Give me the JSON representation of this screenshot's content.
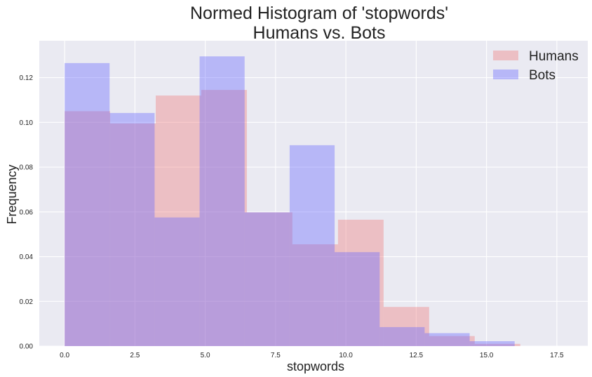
{
  "chart_data": {
    "type": "histogram",
    "title": "Normed Histogram of 'stopwords'",
    "subtitle": "Humans vs. Bots",
    "xlabel": "stopwords",
    "ylabel": "Frequency",
    "xlim": [
      -0.9,
      18.6
    ],
    "ylim": [
      0,
      0.1365
    ],
    "xticks": [
      0.0,
      2.5,
      5.0,
      7.5,
      10.0,
      12.5,
      15.0,
      17.5
    ],
    "xtick_labels": [
      "0.0",
      "2.5",
      "5.0",
      "7.5",
      "10.0",
      "12.5",
      "15.0",
      "17.5"
    ],
    "yticks": [
      0.0,
      0.02,
      0.04,
      0.06,
      0.08,
      0.1,
      0.12
    ],
    "ytick_labels": [
      "0.00",
      "0.02",
      "0.04",
      "0.06",
      "0.08",
      "0.10",
      "0.12"
    ],
    "grid": true,
    "legend_position": "top-right",
    "series": [
      {
        "name": "Humans",
        "color": "#f08080",
        "bins": [
          {
            "x0": 0.0,
            "x1": 1.62,
            "y": 0.105
          },
          {
            "x0": 1.62,
            "x1": 3.24,
            "y": 0.0995
          },
          {
            "x0": 3.24,
            "x1": 4.86,
            "y": 0.112
          },
          {
            "x0": 4.86,
            "x1": 6.48,
            "y": 0.1145
          },
          {
            "x0": 6.48,
            "x1": 8.1,
            "y": 0.0598
          },
          {
            "x0": 8.1,
            "x1": 9.72,
            "y": 0.0455
          },
          {
            "x0": 9.72,
            "x1": 11.34,
            "y": 0.0565
          },
          {
            "x0": 11.34,
            "x1": 12.96,
            "y": 0.0175
          },
          {
            "x0": 12.96,
            "x1": 14.58,
            "y": 0.0045
          },
          {
            "x0": 14.58,
            "x1": 16.2,
            "y": 0.001
          }
        ]
      },
      {
        "name": "Bots",
        "color": "#6b6bff",
        "bins": [
          {
            "x0": 0.0,
            "x1": 1.6,
            "y": 0.1265
          },
          {
            "x0": 1.6,
            "x1": 3.2,
            "y": 0.1042
          },
          {
            "x0": 3.2,
            "x1": 4.8,
            "y": 0.0575
          },
          {
            "x0": 4.8,
            "x1": 6.4,
            "y": 0.1295
          },
          {
            "x0": 6.4,
            "x1": 8.0,
            "y": 0.0598
          },
          {
            "x0": 8.0,
            "x1": 9.6,
            "y": 0.0898
          },
          {
            "x0": 9.6,
            "x1": 11.2,
            "y": 0.042
          },
          {
            "x0": 11.2,
            "x1": 12.8,
            "y": 0.0085
          },
          {
            "x0": 12.8,
            "x1": 14.4,
            "y": 0.0058
          },
          {
            "x0": 14.4,
            "x1": 16.0,
            "y": 0.0022
          }
        ]
      }
    ]
  }
}
